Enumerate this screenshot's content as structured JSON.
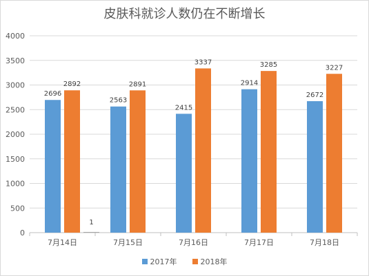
{
  "chart_data": {
    "type": "bar",
    "title": "皮肤科就诊人数仍在不断增长",
    "categories": [
      "7月14日",
      "7月15日",
      "7月16日",
      "7月17日",
      "7月18日"
    ],
    "series": [
      {
        "name": "2017年",
        "color": "#5b9bd5",
        "values": [
          2696,
          2563,
          2415,
          2914,
          2672
        ]
      },
      {
        "name": "2018年",
        "color": "#ed7d31",
        "values": [
          2892,
          2891,
          3337,
          3285,
          3227
        ]
      }
    ],
    "annotations": [
      {
        "category": "7月14日",
        "value": 1,
        "label": "1",
        "color": "#a5a5a5"
      }
    ],
    "ylim": [
      0,
      4000
    ],
    "yticks": [
      0,
      500,
      1000,
      1500,
      2000,
      2500,
      3000,
      3500,
      4000
    ],
    "grid": true,
    "legend_position": "bottom"
  }
}
